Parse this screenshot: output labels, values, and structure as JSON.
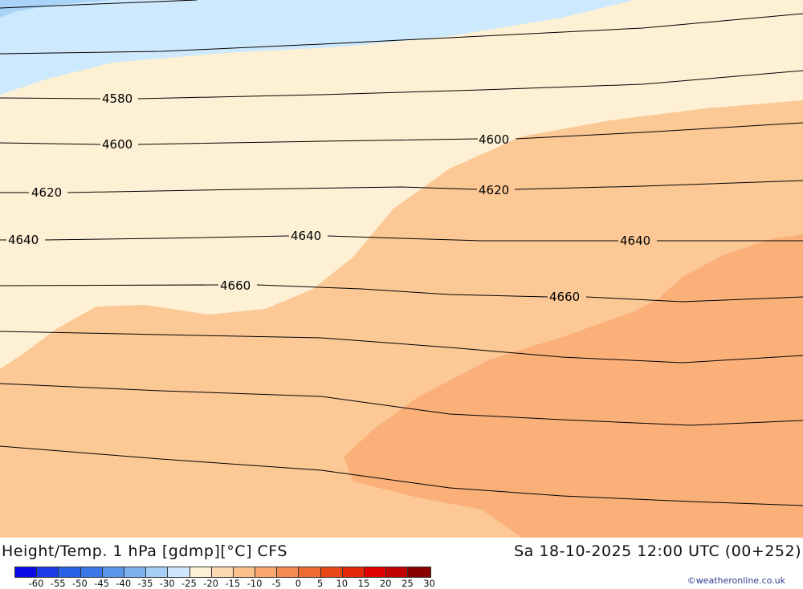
{
  "map": {
    "colors": {
      "light_blue": "#cde9fd",
      "sky_blue": "#a9d3f7",
      "cream": "#fdf0d4",
      "peach": "#fcc896",
      "orange": "#fbb07a",
      "contour": "#000000"
    },
    "contours": [
      {
        "value": "4580",
        "label": "4580"
      },
      {
        "value": "4600",
        "label": "4600"
      },
      {
        "value": "4620",
        "label": "4620"
      },
      {
        "value": "4640",
        "label": "4640"
      },
      {
        "value": "4660",
        "label": "4660"
      }
    ]
  },
  "footer": {
    "title": "Height/Temp. 1 hPa [gdmp][°C] CFS",
    "datetime": "Sa 18-10-2025 12:00 UTC (00+252)",
    "credit": "©weatheronline.co.uk"
  },
  "colorbar": {
    "colors": [
      "#0a0ae6",
      "#1a3be6",
      "#2860e6",
      "#3a78e8",
      "#5a96ec",
      "#7cb2f0",
      "#a6d0f6",
      "#cfe7fc",
      "#fdf0d4",
      "#fdd8b0",
      "#fcc08c",
      "#f9a670",
      "#f48a50",
      "#ee6a30",
      "#e84818",
      "#e42808",
      "#e00000",
      "#c00000",
      "#8a0000"
    ],
    "ticks": [
      "-60",
      "-55",
      "-50",
      "-45",
      "-40",
      "-35",
      "-30",
      "-25",
      "-20",
      "-15",
      "-10",
      "-5",
      "0",
      "5",
      "10",
      "15",
      "20",
      "25",
      "30"
    ]
  }
}
